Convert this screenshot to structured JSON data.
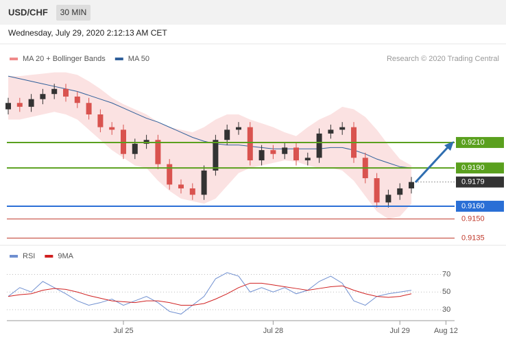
{
  "header": {
    "symbol": "USD/CHF",
    "timeframe": "30 MIN",
    "date": "Wednesday, July 29, 2020 2:12:13 AM CET"
  },
  "credit": "Research © 2020 Trading Central",
  "chart_data": [
    {
      "type": "candlestick",
      "categories": [
        null,
        null,
        null,
        null,
        null,
        null,
        null,
        null,
        null,
        null,
        "Jul 25",
        null,
        null,
        null,
        null,
        null,
        null,
        null,
        null,
        null,
        null,
        null,
        null,
        "Jul 28",
        null,
        null,
        null,
        null,
        null,
        null,
        null,
        null,
        null,
        null,
        "Jul 29",
        null,
        null,
        null,
        "Aug 12"
      ],
      "open": [
        0.9236,
        0.9241,
        0.9238,
        0.9244,
        0.9248,
        0.9252,
        0.9246,
        0.9241,
        0.9232,
        0.9222,
        0.922,
        0.9201,
        0.9209,
        0.9212,
        0.9193,
        0.9177,
        0.9174,
        0.9169,
        0.9188,
        0.9212,
        0.922,
        0.9222,
        0.9196,
        0.9204,
        0.9201,
        0.9206,
        0.9196,
        0.9198,
        0.9217,
        0.922,
        0.9222,
        0.9198,
        0.9182,
        0.9163,
        0.9169,
        0.9174,
        null,
        null,
        null
      ],
      "high": [
        0.9245,
        0.9245,
        0.9248,
        0.9252,
        0.9256,
        0.9256,
        0.925,
        0.9245,
        0.9236,
        0.9226,
        0.9224,
        0.9213,
        0.9216,
        0.9216,
        0.9197,
        0.9181,
        0.9178,
        0.9192,
        0.9216,
        0.9224,
        0.9226,
        0.9226,
        0.9208,
        0.9208,
        0.921,
        0.921,
        0.9202,
        0.9221,
        0.9224,
        0.9226,
        0.9226,
        0.9202,
        0.9186,
        0.9173,
        0.9178,
        0.9183,
        null,
        null,
        null
      ],
      "low": [
        0.9232,
        0.9234,
        0.9234,
        0.924,
        0.9244,
        0.9242,
        0.9237,
        0.9228,
        0.9218,
        0.9216,
        0.9197,
        0.9197,
        0.9205,
        0.9189,
        0.9173,
        0.917,
        0.9165,
        0.9165,
        0.9184,
        0.9208,
        0.9216,
        0.9192,
        0.9192,
        0.9197,
        0.9197,
        0.9192,
        0.9192,
        0.9194,
        0.9213,
        0.9216,
        0.9194,
        0.9178,
        0.9159,
        0.9159,
        0.9165,
        0.917,
        null,
        null,
        null
      ],
      "close": [
        0.9241,
        0.9238,
        0.9244,
        0.9248,
        0.9252,
        0.9246,
        0.9241,
        0.9232,
        0.9222,
        0.922,
        0.9201,
        0.9209,
        0.9212,
        0.9193,
        0.9177,
        0.9174,
        0.9169,
        0.9188,
        0.9212,
        0.922,
        0.9222,
        0.9196,
        0.9204,
        0.9201,
        0.9206,
        0.9196,
        0.9198,
        0.9217,
        0.922,
        0.9222,
        0.9198,
        0.9182,
        0.9163,
        0.9169,
        0.9174,
        0.9179,
        null,
        null,
        null
      ],
      "up_color": "#333333",
      "down_color": "#d9534f",
      "series": [
        {
          "name": "MA 20 + Bollinger Bands",
          "color": "#f08a8a",
          "upper": [
            0.9262,
            0.9262,
            0.9263,
            0.9264,
            0.9265,
            0.9265,
            0.9263,
            0.9258,
            0.9252,
            0.9245,
            0.924,
            0.9236,
            0.9232,
            0.9226,
            0.9222,
            0.922,
            0.9218,
            0.9222,
            0.9228,
            0.9232,
            0.9232,
            0.9228,
            0.9225,
            0.9222,
            0.9218,
            0.9215,
            0.9222,
            0.9228,
            0.9232,
            0.9238,
            0.9236,
            0.923,
            0.922,
            0.9208,
            0.9197,
            0.9192,
            null,
            null,
            null
          ],
          "lower": [
            0.9228,
            0.9228,
            0.923,
            0.9232,
            0.9234,
            0.9232,
            0.9228,
            0.922,
            0.9212,
            0.9204,
            0.9198,
            0.9192,
            0.919,
            0.918,
            0.9172,
            0.9166,
            0.9164,
            0.9162,
            0.9166,
            0.9176,
            0.9186,
            0.919,
            0.9192,
            0.9194,
            0.9196,
            0.9195,
            0.9192,
            0.919,
            0.919,
            0.9188,
            0.918,
            0.9168,
            0.9156,
            0.915,
            0.9152,
            0.9162,
            null,
            null,
            null
          ]
        },
        {
          "name": "MA 50",
          "color": "#2f5f9a",
          "values": [
            0.9262,
            0.926,
            0.9258,
            0.9256,
            0.9254,
            0.9252,
            0.925,
            0.9247,
            0.9244,
            0.9241,
            0.9237,
            0.9233,
            0.9229,
            0.9226,
            0.9222,
            0.9218,
            0.9214,
            0.9211,
            0.9209,
            0.9208,
            0.9208,
            0.9207,
            0.9206,
            0.9205,
            0.9205,
            0.9205,
            0.9205,
            0.9205,
            0.9206,
            0.9206,
            0.9204,
            0.9201,
            0.9197,
            0.9194,
            0.9191,
            0.919,
            null,
            null,
            null
          ]
        }
      ],
      "ylim": [
        0.9131,
        0.9268
      ],
      "levels": [
        {
          "value": 0.921,
          "label": "0.9210",
          "color": "#5aa01e",
          "box": true,
          "dashed": false
        },
        {
          "value": 0.919,
          "label": "0.9190",
          "color": "#5aa01e",
          "box": true,
          "dashed": false
        },
        {
          "value": 0.9179,
          "label": "0.9179",
          "color": "#333333",
          "box": true,
          "dashed": true
        },
        {
          "value": 0.916,
          "label": "0.9160",
          "color": "#2a6fd6",
          "box": true,
          "dashed": false
        },
        {
          "value": 0.915,
          "label": "0.9150",
          "color": "#c0392b",
          "box": false,
          "dashed": false
        },
        {
          "value": 0.9135,
          "label": "0.9135",
          "color": "#c0392b",
          "box": false,
          "dashed": false
        }
      ]
    },
    {
      "type": "line",
      "series": [
        {
          "name": "RSI",
          "color": "#6f8fd0",
          "values": [
            45,
            55,
            50,
            62,
            55,
            48,
            40,
            35,
            38,
            42,
            35,
            40,
            45,
            38,
            28,
            25,
            35,
            45,
            65,
            72,
            68,
            50,
            55,
            50,
            55,
            48,
            52,
            62,
            68,
            60,
            40,
            35,
            45,
            48,
            50,
            52,
            null,
            null,
            null
          ]
        },
        {
          "name": "9MA",
          "color": "#d02020",
          "values": [
            45,
            47,
            48,
            52,
            54,
            53,
            50,
            46,
            43,
            40,
            39,
            38,
            40,
            40,
            38,
            35,
            35,
            37,
            42,
            48,
            55,
            60,
            60,
            58,
            56,
            54,
            52,
            54,
            56,
            57,
            52,
            48,
            45,
            44,
            45,
            48,
            null,
            null,
            null
          ]
        }
      ],
      "ylim": [
        16,
        82
      ],
      "yticks": [
        30,
        50,
        70
      ],
      "grid": true
    }
  ]
}
